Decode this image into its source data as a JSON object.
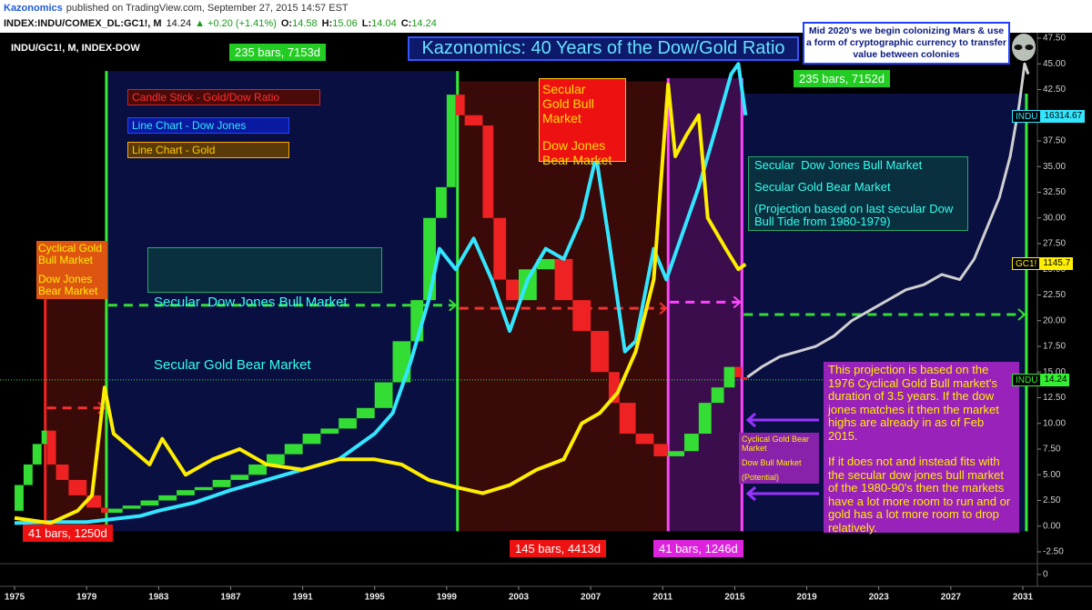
{
  "header": {
    "author": "Kazonomics",
    "published": "published on TradingView.com, September 27, 2015 14:57 EST",
    "symbol": "INDEX:INDU/COMEX_DL:GC1!, M",
    "last": 14.24,
    "change": "▲ +0.20 (+1.41%)",
    "open_label": "O:",
    "open": 14.58,
    "high_label": "H:",
    "high": 15.06,
    "low_label": "L:",
    "low": 14.04,
    "close_label": "C:",
    "close": 14.24
  },
  "chart_data": {
    "type": "line",
    "title": "Kazonomics: 40 Years of the Dow/Gold Ratio",
    "label": "INDU/GC1!, M, INDEX-DOW",
    "xlim": [
      1974.19,
      2031.81
    ],
    "ylim": [
      -3.65,
      48.03
    ],
    "xticks": [
      1975,
      1979,
      1983,
      1987,
      1991,
      1995,
      1999,
      2003,
      2007,
      2011,
      2015,
      2019,
      2023,
      2027,
      2031
    ],
    "yticks": [
      {
        "value": -2.5,
        "label": "-2.50"
      },
      {
        "value": 0,
        "label": "0.00"
      },
      {
        "value": 2.5,
        "label": "2.50"
      },
      {
        "value": 5,
        "label": "5.00"
      },
      {
        "value": 7.5,
        "label": "7.50"
      },
      {
        "value": 10,
        "label": "10.00"
      },
      {
        "value": 12.5,
        "label": "12.50"
      },
      {
        "value": 15,
        "label": "15.00"
      },
      {
        "value": 17.5,
        "label": "17.50"
      },
      {
        "value": 20,
        "label": "20.00"
      },
      {
        "value": 22.5,
        "label": "22.50"
      },
      {
        "value": 25,
        "label": "25.00"
      },
      {
        "value": 27.5,
        "label": "27.50"
      },
      {
        "value": 30,
        "label": "30.00"
      },
      {
        "value": 32.5,
        "label": "32.50"
      },
      {
        "value": 35,
        "label": "35.00"
      },
      {
        "value": 37.5,
        "label": "37.50"
      },
      {
        "value": 40,
        "label": "40.00"
      },
      {
        "value": 42.5,
        "label": "42.50"
      },
      {
        "value": 45,
        "label": "45.00"
      },
      {
        "value": 47.5,
        "label": "47.50"
      }
    ],
    "lower_yticks": [
      0
    ],
    "series": [
      {
        "name": "Candle Stick - Gold/Dow Ratio",
        "style": "candle",
        "color": "#33dd33",
        "down_color": "#ee2222",
        "x": [
          1975.0,
          1975.5,
          1976.0,
          1976.5,
          1976.8,
          1977.3,
          1978,
          1979,
          1979.8,
          1980.2,
          1981,
          1982,
          1983,
          1984,
          1985,
          1986,
          1987,
          1988,
          1989,
          1990,
          1991,
          1992,
          1993,
          1994,
          1995,
          1996,
          1997,
          1997.7,
          1998.4,
          1999,
          1999.5,
          2000,
          2001,
          2001.6,
          2002.3,
          2003,
          2004,
          2005,
          2006,
          2007,
          2008,
          2008.6,
          2009.5,
          2010.5,
          2011.3,
          2012.2,
          2013,
          2013.7,
          2014.4,
          2015,
          2015.4,
          2015.7
        ],
        "values": [
          1.5,
          4,
          6,
          8,
          9.3,
          6,
          4.5,
          3,
          1.8,
          1.3,
          1.7,
          2,
          2.5,
          3,
          3.5,
          3.8,
          4.5,
          5,
          6,
          7,
          8,
          9,
          9.5,
          10.5,
          11.5,
          14,
          18,
          22,
          30,
          33,
          42,
          40,
          39,
          30,
          24,
          22,
          25,
          26,
          22,
          19,
          15,
          12,
          9,
          8,
          6.8,
          7.3,
          9,
          12,
          13.5,
          15.5,
          14.5,
          14.24
        ]
      },
      {
        "name": "Line Chart - Dow Jones",
        "color": "#33e6ff",
        "x": [
          1975,
          1977,
          1979,
          1980,
          1982,
          1983,
          1985,
          1987,
          1989,
          1991,
          1993,
          1995,
          1996,
          1997,
          1998,
          1998.6,
          1999.5,
          2000.5,
          2001.5,
          2002.5,
          2003.5,
          2004.5,
          2005.5,
          2006.5,
          2007.3,
          2008,
          2008.9,
          2009.5,
          2010.5,
          2011.2,
          2012,
          2013,
          2014,
          2014.8,
          2015.2,
          2015.6
        ],
        "values": [
          0.3,
          0.4,
          0.4,
          0.6,
          1,
          1.5,
          2.3,
          3.5,
          4.5,
          5.5,
          6.5,
          9,
          11,
          16,
          22,
          27,
          25,
          28,
          24,
          19,
          24,
          27,
          26,
          30,
          36,
          28,
          17,
          18,
          27,
          24,
          28,
          33,
          39,
          44,
          45,
          40
        ]
      },
      {
        "name": "Line Chart - Gold",
        "color": "#ffee00",
        "x": [
          1975,
          1977,
          1978.5,
          1979.3,
          1980,
          1980.5,
          1981.5,
          1982.5,
          1983.2,
          1984.5,
          1986,
          1987.5,
          1989,
          1991,
          1993,
          1995,
          1996.5,
          1998,
          1999.5,
          2001,
          2002.5,
          2004,
          2005.5,
          2006.5,
          2007.5,
          2008.5,
          2009.5,
          2010.5,
          2011.3,
          2011.7,
          2012.3,
          2013,
          2013.5,
          2014.5,
          2015.2,
          2015.6
        ],
        "values": [
          0.8,
          0.3,
          1.5,
          3,
          13.5,
          9,
          7.5,
          6,
          8.5,
          5,
          6.5,
          7.5,
          6,
          5.5,
          6.5,
          6.5,
          6,
          4.5,
          3.8,
          3.2,
          4,
          5.5,
          6.5,
          10,
          11,
          13,
          17,
          24,
          43,
          36,
          38,
          40,
          30,
          27,
          25,
          25.5
        ]
      },
      {
        "color": "#d0d0d0",
        "x": [
          2015.7,
          2016.5,
          2017.5,
          2018.5,
          2019.5,
          2020.5,
          2021.5,
          2022.5,
          2023.5,
          2024.5,
          2025.5,
          2026.5,
          2027.5,
          2028.3,
          2029,
          2029.7,
          2030.3,
          2030.8,
          2031.1,
          2031.3
        ],
        "values": [
          14.5,
          15.5,
          16.5,
          17,
          17.5,
          18.5,
          20,
          21,
          22,
          23,
          23.5,
          24.5,
          24,
          26,
          29,
          32,
          36,
          41,
          45,
          44
        ]
      }
    ],
    "regions": [
      {
        "x": [
          1976.7,
          1980.1
        ],
        "y": [
          -0.5,
          24.5
        ],
        "color": "#3a0a08"
      },
      {
        "x": [
          1980.1,
          1999.6
        ],
        "y": [
          -0.5,
          44.3
        ],
        "color": "#0a0f42"
      },
      {
        "x": [
          1999.6,
          2011.3
        ],
        "y": [
          -0.5,
          43.3
        ],
        "color": "#3a0a08"
      },
      {
        "x": [
          2011.3,
          2015.4
        ],
        "y": [
          -0.5,
          43.6
        ],
        "color": "#3b0d4d"
      },
      {
        "x": [
          2015.4,
          2031.2
        ],
        "y": [
          -0.5,
          42.1
        ],
        "color": "#0a0f42"
      }
    ],
    "vlines": [
      {
        "x": 1976.7,
        "y": [
          -0.5,
          24.5
        ],
        "color": "#ee2222"
      },
      {
        "x": 1980.1,
        "y": [
          -0.5,
          44.3
        ],
        "color": "#33ee33"
      },
      {
        "x": 1999.6,
        "y": [
          -0.5,
          44.3
        ],
        "color": "#33ee33"
      },
      {
        "x": 2011.3,
        "y": [
          -0.5,
          43.6
        ],
        "color": "#ff44ff"
      },
      {
        "x": 2015.4,
        "y": [
          -0.5,
          43.6
        ],
        "color": "#ff44ff"
      },
      {
        "x": 2031.2,
        "y": [
          -0.5,
          42.1
        ],
        "color": "#33ee33"
      }
    ],
    "hlines": [
      {
        "y": 11.5,
        "x": [
          1976.8,
          1980
        ],
        "color": "#ee3333"
      },
      {
        "y": 21.5,
        "x": [
          1980.2,
          1999.5
        ],
        "color": "#33dd33"
      },
      {
        "y": 21.2,
        "x": [
          1999.7,
          2011.2
        ],
        "color": "#ee3333"
      },
      {
        "y": 21.8,
        "x": [
          2011.4,
          2015.3
        ],
        "color": "#ff44ff"
      },
      {
        "y": 20.6,
        "x": [
          2015.5,
          2031.1
        ],
        "color": "#33dd33"
      }
    ],
    "price_labels": [
      {
        "symbol": "INDU",
        "price": 16314.67
      },
      {
        "symbol": "GC1!",
        "price": 1145.7
      },
      {
        "symbol": "INDU",
        "price": 14.24
      }
    ],
    "notes": [
      "235 bars, 7153d",
      "235 bars, 7152d",
      "Mid 2020's we begin colonizing Mars & use a form of cryptographic currency to transfer value between colonies",
      "Secular Gold Bull Market",
      "Dow Jones Bear Market",
      "Cyclical Gold Bull Market",
      "Dow Jones Bear Market",
      "Secular  Dow Jones Bull Market",
      "Secular Gold Bear Market",
      "Secular  Dow Jones Bull Market",
      "Secular Gold Bear Market",
      "(Projection based on last secular Dow Bull Tide from 1980-1979)",
      "41 bars, 1250d",
      "145 bars, 4413d",
      "41 bars, 1246d",
      "This projection is based on the 1976 Cyclical Gold Bull market's duration of 3.5 years. If the dow jones matches it then the market highs are already in as of Feb 2015.",
      "If it does not and instead fits with the secular dow jones bull market of the 1980-90's then the markets have a lot more room to run and or gold has a lot more room to drop relatively.",
      "Cyclical Gold Bear Market",
      "Dow Bull Market",
      "(Potential)"
    ]
  }
}
